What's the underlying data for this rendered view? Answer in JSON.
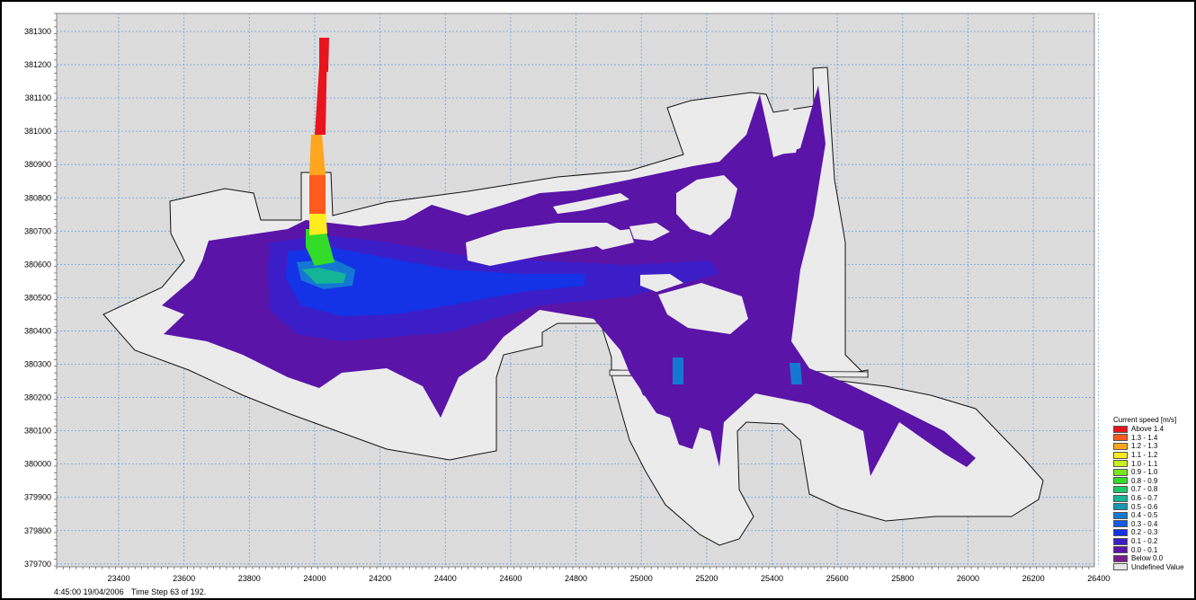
{
  "chart": {
    "type": "map-contour",
    "x_ticks": [
      "23400",
      "23600",
      "23800",
      "24000",
      "24200",
      "24400",
      "24600",
      "24800",
      "25000",
      "25200",
      "25400",
      "25600",
      "25800",
      "26000",
      "26200",
      "26400"
    ],
    "y_ticks": [
      "381300",
      "381200",
      "381100",
      "381000",
      "380900",
      "380800",
      "380700",
      "380600",
      "380500",
      "380400",
      "380300",
      "380200",
      "380100",
      "380000",
      "379900",
      "379800",
      "379700"
    ],
    "grid": true,
    "colors": {
      "background": "#dcdcdc",
      "grid": "#6fa3e0",
      "undefined": "#ebebeb",
      "base_speed": "#5a14a8"
    }
  },
  "legend": {
    "title": "Current speed [m/s]",
    "items": [
      {
        "label": "Above 1.4",
        "color": "#e8141e"
      },
      {
        "label": "1.3 - 1.4",
        "color": "#ff5a1e"
      },
      {
        "label": "1.2 - 1.3",
        "color": "#ffa51e"
      },
      {
        "label": "1.1 - 1.2",
        "color": "#ffeb1e"
      },
      {
        "label": "1.0 - 1.1",
        "color": "#c8f01e"
      },
      {
        "label": "0.9 - 1.0",
        "color": "#78e61e"
      },
      {
        "label": "0.8 - 0.9",
        "color": "#32dc28"
      },
      {
        "label": "0.7 - 0.8",
        "color": "#1ec864"
      },
      {
        "label": "0.6 - 0.7",
        "color": "#14b496"
      },
      {
        "label": "0.5 - 0.6",
        "color": "#1496b4"
      },
      {
        "label": "0.4 - 0.5",
        "color": "#1478d2"
      },
      {
        "label": "0.3 - 0.4",
        "color": "#145ae6"
      },
      {
        "label": "0.2 - 0.3",
        "color": "#1432e6"
      },
      {
        "label": "0.1 - 0.2",
        "color": "#3c1ec8"
      },
      {
        "label": "0.0 - 0.1",
        "color": "#5a14a8"
      },
      {
        "label": "Below 0.0",
        "color": "#781e8c"
      },
      {
        "label": "Undefined Value",
        "color": "#e6e6e6"
      }
    ]
  },
  "status": {
    "datetime": "4:45:00 19/04/2006",
    "timestep": "Time Step 63 of 192."
  }
}
